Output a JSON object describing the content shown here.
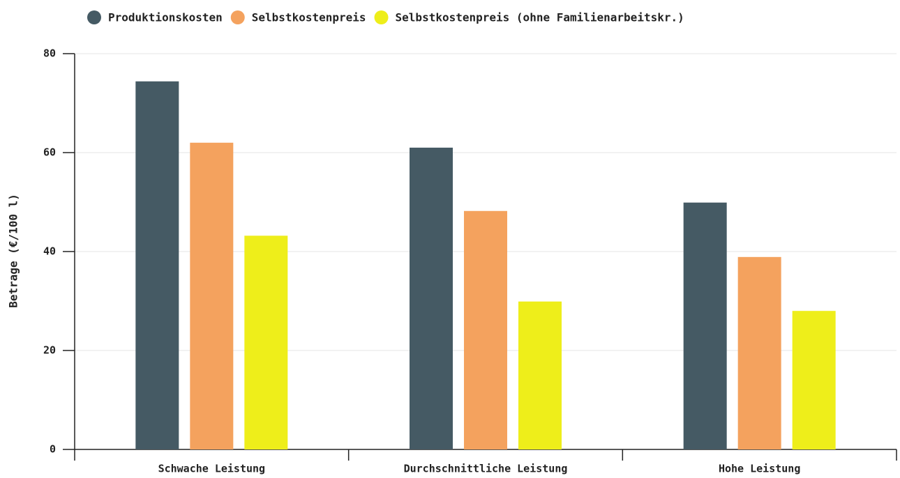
{
  "chart_data": {
    "type": "bar",
    "ylabel": "Betrage (€/100 l)",
    "categories": [
      "Schwache Leistung",
      "Durchschnittliche Leistung",
      "Hohe Leistung"
    ],
    "series": [
      {
        "name": "Produktionskosten",
        "color": "#455a64",
        "values": [
          74.4,
          61.0,
          49.9
        ]
      },
      {
        "name": "Selbstkostenpreis",
        "color": "#f4a25e",
        "values": [
          62.0,
          48.2,
          38.9
        ]
      },
      {
        "name": "Selbstkostenpreis (ohne Familienarbeitskr.)",
        "color": "#eeee1a",
        "values": [
          43.2,
          29.9,
          28.0
        ]
      }
    ],
    "ylim": [
      0,
      80
    ],
    "yticks": [
      0,
      20,
      40,
      60,
      80
    ],
    "grid": true,
    "legend": "top"
  }
}
